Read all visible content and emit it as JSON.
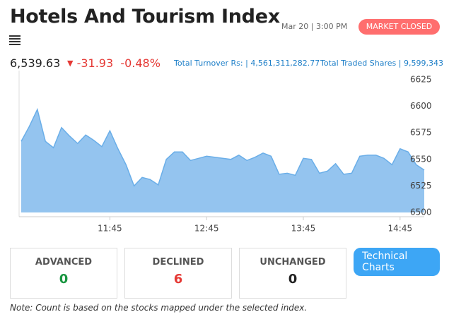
{
  "header": {
    "title": "Hotels And Tourism Index",
    "timestamp": "Mar 20 | 3:00 PM",
    "status": "MARKET CLOSED"
  },
  "quote": {
    "value": "6,539.63",
    "change": "-31.93",
    "change_percent": "-0.48%",
    "turnover_label": "Total Turnover Rs: |",
    "turnover": "4,561,311,282.77",
    "shares_label": "Total Traded Shares |",
    "shares": "9,599,343"
  },
  "chart_data": {
    "type": "area",
    "color": "#94c4ef",
    "line_color": "#6aaee8",
    "x": [
      "10:50",
      "10:55",
      "11:00",
      "11:05",
      "11:10",
      "11:15",
      "11:20",
      "11:25",
      "11:30",
      "11:35",
      "11:40",
      "11:45",
      "11:50",
      "11:55",
      "12:00",
      "12:05",
      "12:10",
      "12:15",
      "12:20",
      "12:25",
      "12:30",
      "12:35",
      "12:40",
      "12:45",
      "12:50",
      "12:55",
      "13:00",
      "13:05",
      "13:10",
      "13:15",
      "13:20",
      "13:25",
      "13:30",
      "13:35",
      "13:40",
      "13:45",
      "13:50",
      "13:55",
      "14:00",
      "14:05",
      "14:10",
      "14:15",
      "14:20",
      "14:25",
      "14:30",
      "14:35",
      "14:40",
      "14:45",
      "14:50",
      "14:55",
      "15:00"
    ],
    "values": [
      6567,
      6581,
      6597,
      6567,
      6561,
      6580,
      6572,
      6565,
      6573,
      6568,
      6562,
      6577,
      6560,
      6545,
      6525,
      6533,
      6531,
      6526,
      6550,
      6557,
      6557,
      6549,
      6551,
      6553,
      6552,
      6551,
      6550,
      6554,
      6549,
      6552,
      6556,
      6553,
      6536,
      6537,
      6535,
      6551,
      6550,
      6537,
      6539,
      6546,
      6536,
      6537,
      6553,
      6554,
      6554,
      6551,
      6545,
      6560,
      6557,
      6545,
      6540
    ],
    "xlim": [
      "10:50",
      "15:00"
    ],
    "xticks": [
      "11:45",
      "12:45",
      "13:45",
      "14:45"
    ],
    "ylim": [
      6500,
      6625
    ],
    "yticks": [
      6500,
      6525,
      6550,
      6575,
      6600,
      6625
    ],
    "grid": false
  },
  "counts": {
    "advanced_label": "ADVANCED",
    "advanced": 0,
    "declined_label": "DECLINED",
    "declined": 6,
    "unchanged_label": "UNCHANGED",
    "unchanged": 0
  },
  "button": "Technical Charts",
  "note": "Note: Count is based on the stocks mapped under the selected index."
}
